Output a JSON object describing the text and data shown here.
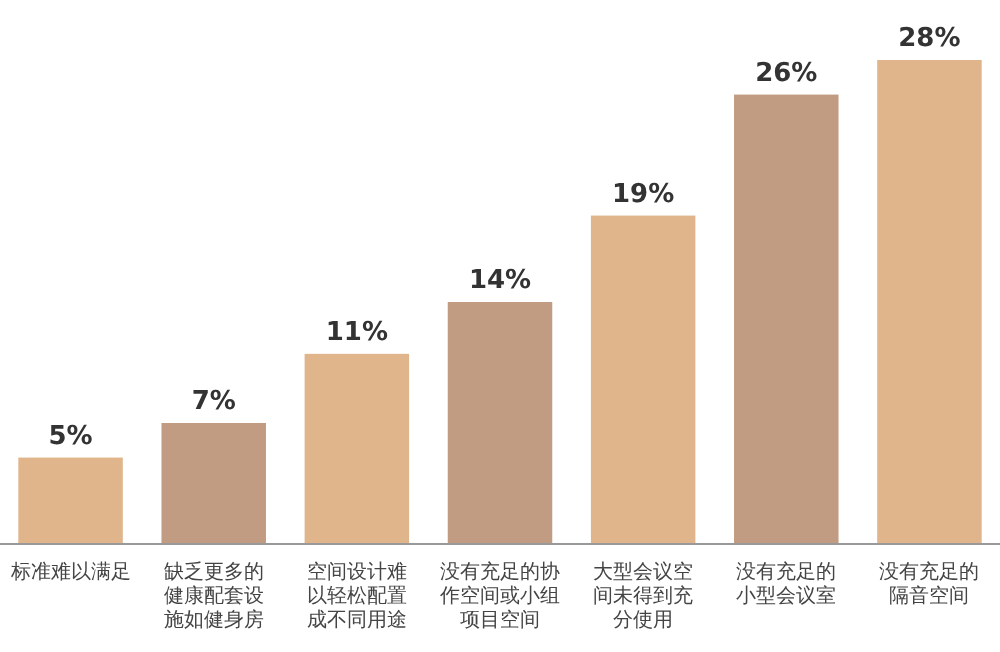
{
  "chart_data": {
    "type": "bar",
    "categories": [
      "标准难以满足",
      "缺乏更多的健康配套设施如健身房",
      "空间设计难以轻松配置成不同用途",
      "没有充足的协作空间或小组项目空间",
      "大型会议空间未得到充分使用",
      "没有充足的小型会议室",
      "没有充足的隔音空间"
    ],
    "values": [
      5,
      7,
      11,
      14,
      19,
      26,
      28
    ],
    "colors": [
      "#e0b58c",
      "#c29c82",
      "#e0b58c",
      "#c29c82",
      "#e0b58c",
      "#c29c82",
      "#e0b58c"
    ],
    "value_labels": [
      "5%",
      "7%",
      "11%",
      "14%",
      "19%",
      "26%",
      "28%"
    ]
  }
}
